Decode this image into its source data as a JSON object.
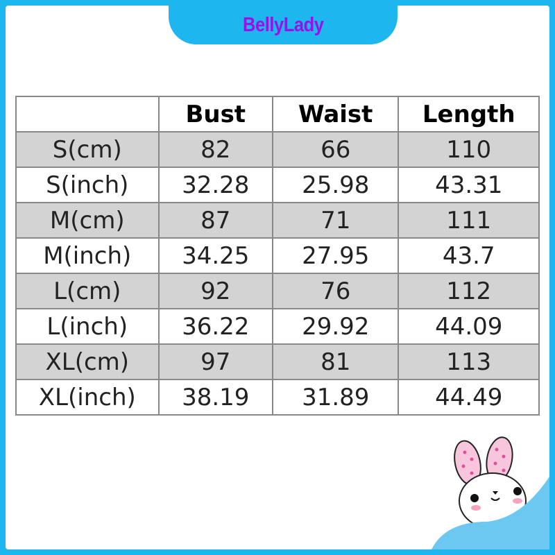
{
  "brand": "BellyLady",
  "colors": {
    "frame": "#1db6ee",
    "brand_text": "#9b10e8",
    "row_shade": "#d3d3d3"
  },
  "table": {
    "headers": [
      "",
      "Bust",
      "Waist",
      "Length"
    ],
    "rows": [
      [
        "S(cm)",
        "82",
        "66",
        "110"
      ],
      [
        "S(inch)",
        "32.28",
        "25.98",
        "43.31"
      ],
      [
        "M(cm)",
        "87",
        "71",
        "111"
      ],
      [
        "M(inch)",
        "34.25",
        "27.95",
        "43.7"
      ],
      [
        "L(cm)",
        "92",
        "76",
        "112"
      ],
      [
        "L(inch)",
        "36.22",
        "29.92",
        "44.09"
      ],
      [
        "XL(cm)",
        "97",
        "81",
        "113"
      ],
      [
        "XL(inch)",
        "38.19",
        "31.89",
        "44.49"
      ]
    ]
  },
  "decoration": "bunny-icon"
}
